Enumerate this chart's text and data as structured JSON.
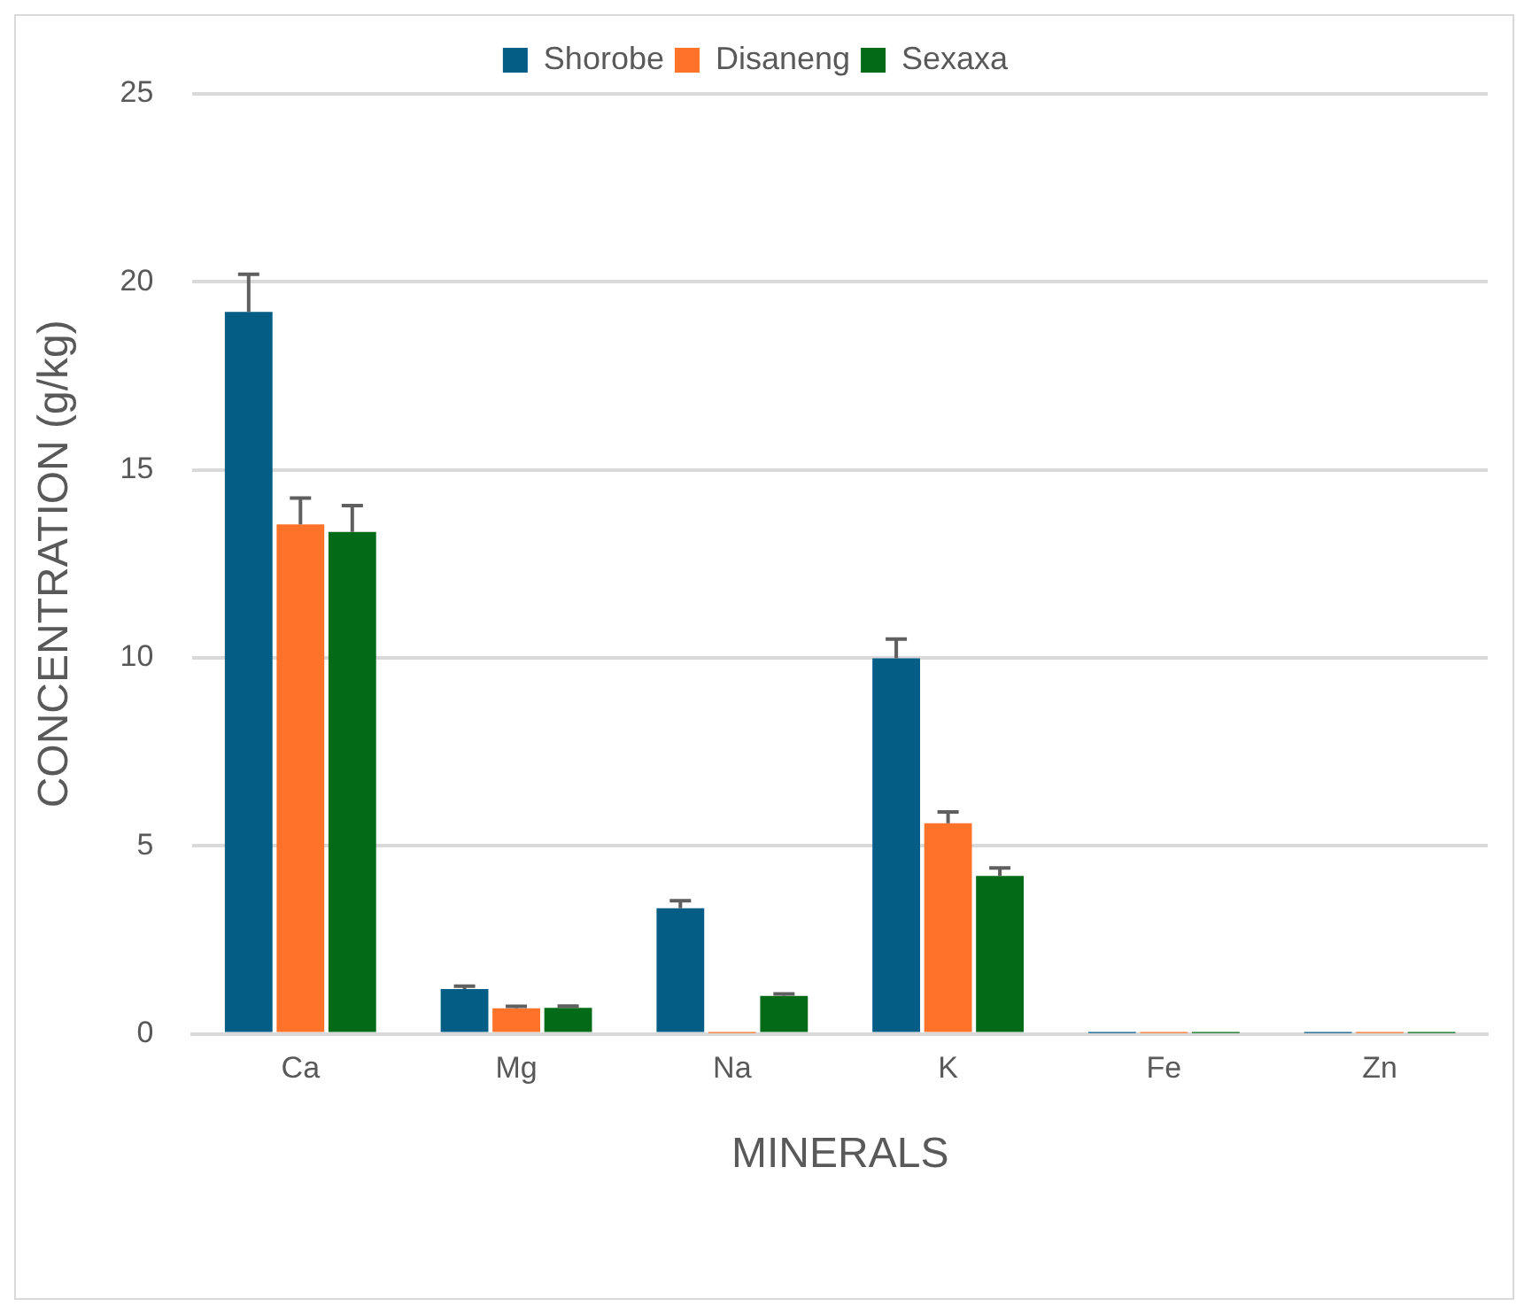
{
  "chart_data": {
    "type": "bar",
    "xlabel": "MINERALS",
    "ylabel": "CONCENTRATION (g/kg)",
    "categories": [
      "Ca",
      "Mg",
      "Na",
      "K",
      "Fe",
      "Zn"
    ],
    "series": [
      {
        "name": "Shorobe",
        "color": "#035d84",
        "values": [
          19.2,
          1.19,
          3.34,
          9.99,
          0.02,
          0.02
        ],
        "errors": [
          [
            19.2,
            20.2
          ],
          [
            1.19,
            1.27
          ],
          [
            3.34,
            3.54
          ],
          [
            9.99,
            10.5
          ],
          null,
          null
        ]
      },
      {
        "name": "Disaneng",
        "color": "#fe7229",
        "values": [
          13.55,
          0.68,
          0.02,
          5.6,
          0.02,
          0.02
        ],
        "errors": [
          [
            13.55,
            14.25
          ],
          [
            0.68,
            0.73
          ],
          null,
          [
            5.6,
            5.9
          ],
          null,
          null
        ]
      },
      {
        "name": "Sexaxa",
        "color": "#036a18",
        "values": [
          13.35,
          0.69,
          1.01,
          4.2,
          0.02,
          0.02
        ],
        "errors": [
          [
            13.35,
            14.05
          ],
          [
            0.69,
            0.74
          ],
          [
            1.01,
            1.06
          ],
          [
            4.2,
            4.41
          ],
          null,
          null
        ]
      }
    ],
    "ylim": [
      0,
      25
    ],
    "yticks": [
      0,
      5,
      10,
      15,
      20,
      25
    ],
    "grid": "y",
    "legend": "top"
  }
}
